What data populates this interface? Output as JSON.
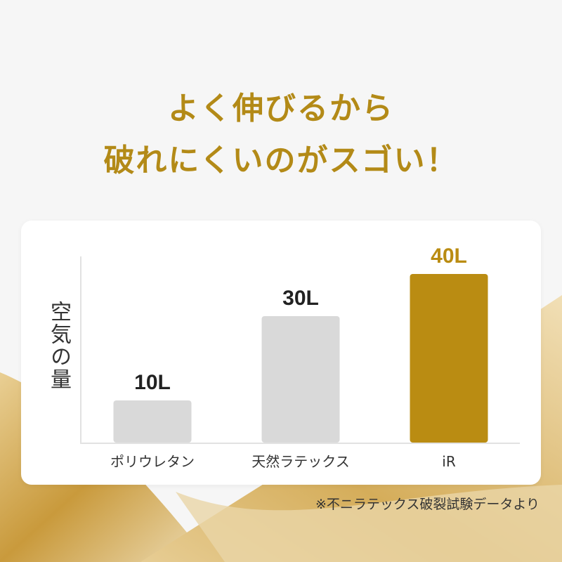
{
  "header": {
    "line1": "よく伸びるから",
    "line2": "破れにくいのがスゴい！"
  },
  "chart_data": {
    "type": "bar",
    "categories": [
      "ポリウレタン",
      "天然ラテックス",
      "iR"
    ],
    "values": [
      10,
      30,
      40
    ],
    "data_labels": [
      "10L",
      "30L",
      "40L"
    ],
    "ylabel": "空気の量",
    "xlabel": "",
    "ylim": [
      0,
      45
    ],
    "grid": false,
    "bar_colors": [
      "#d9d9d9",
      "#d9d9d9",
      "#ba8c12"
    ],
    "label_colors": [
      "#222222",
      "#222222",
      "#ba8c12"
    ]
  },
  "footnote": "※不ニラテックス破裂試験データより",
  "colors": {
    "accent": "#b38a17",
    "background": "#f6f6f6"
  }
}
